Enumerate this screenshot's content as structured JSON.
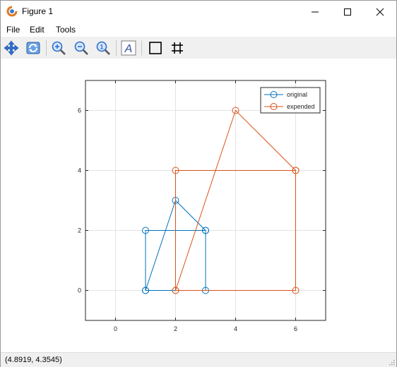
{
  "window": {
    "title": "Figure 1",
    "controls": [
      "minimize",
      "maximize",
      "close"
    ]
  },
  "menu": {
    "items": [
      "File",
      "Edit",
      "Tools"
    ]
  },
  "toolbar": {
    "buttons": [
      {
        "name": "pan",
        "icon": "move-arrows-icon"
      },
      {
        "name": "rotate",
        "icon": "rotate-icon"
      },
      {
        "name": "zoom-in",
        "icon": "zoom-in-icon"
      },
      {
        "name": "zoom-out",
        "icon": "zoom-out-icon"
      },
      {
        "name": "zoom-reset",
        "icon": "zoom-reset-icon"
      },
      {
        "name": "text",
        "icon": "text-a-icon"
      },
      {
        "name": "axes-box",
        "icon": "box-icon"
      },
      {
        "name": "grid",
        "icon": "grid-icon"
      }
    ]
  },
  "status": {
    "coordinates": "(4.8919, 4.3545)"
  },
  "colors": {
    "original": "#0072bd",
    "expended": "#d95319"
  },
  "chart_data": {
    "type": "line",
    "xlim": [
      -1,
      7
    ],
    "ylim": [
      -1,
      7
    ],
    "xticks": [
      "0",
      "2",
      "4",
      "6"
    ],
    "yticks": [
      "0",
      "2",
      "4",
      "6"
    ],
    "grid": true,
    "legend_position": "top-right",
    "series": [
      {
        "name": "original",
        "x": [
          1,
          3,
          3,
          1,
          1,
          2,
          3
        ],
        "y": [
          0,
          0,
          2,
          2,
          0,
          3,
          2
        ],
        "marker": "circle"
      },
      {
        "name": "expended",
        "x": [
          2,
          6,
          6,
          2,
          2,
          4,
          6
        ],
        "y": [
          0,
          0,
          4,
          4,
          0,
          6,
          4
        ],
        "marker": "circle"
      }
    ]
  }
}
